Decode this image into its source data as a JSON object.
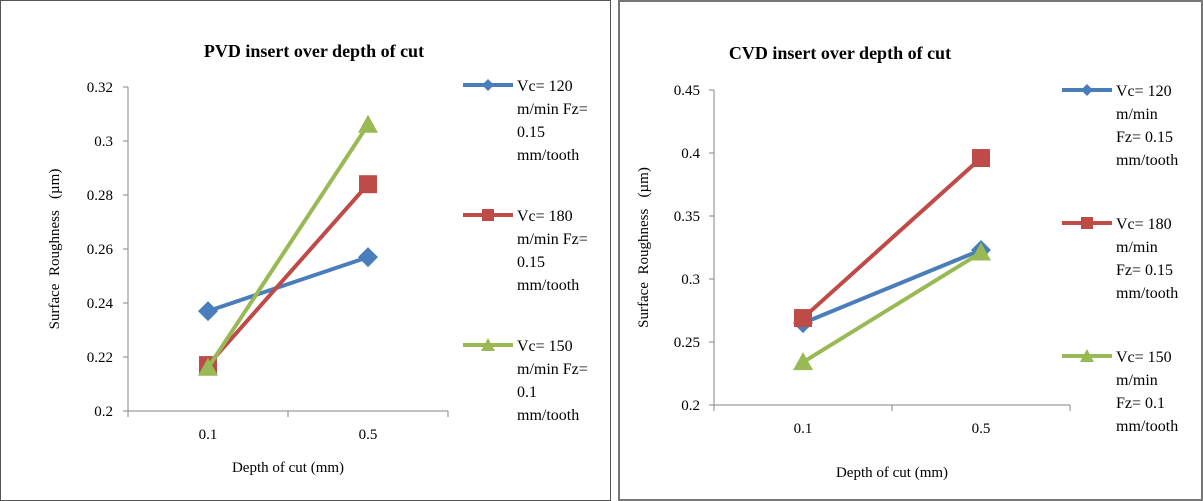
{
  "chart_data": [
    {
      "type": "line",
      "title": "PVD insert over depth of cut",
      "xlabel": "Depth of cut (mm)",
      "ylabel": "Surface  Roughness   (µm)",
      "categories": [
        "0.1",
        "0.5"
      ],
      "ylim": [
        0.2,
        0.32
      ],
      "yticks": [
        "0.2",
        "0.22",
        "0.24",
        "0.26",
        "0.28",
        "0.3",
        "0.32"
      ],
      "grid": false,
      "legend_position": "right",
      "series": [
        {
          "name": "Vc= 120 m/min Fz= 0.15 mm/tooth",
          "legend_lines": [
            "Vc= 120",
            "m/min Fz=",
            "0.15",
            "mm/tooth"
          ],
          "values": [
            0.237,
            0.257
          ],
          "color": "#4a7ebb",
          "marker": "diamond"
        },
        {
          "name": "Vc= 180 m/min Fz= 0.15 mm/tooth",
          "legend_lines": [
            "Vc= 180",
            "m/min Fz=",
            "0.15",
            "mm/tooth"
          ],
          "values": [
            0.217,
            0.284
          ],
          "color": "#be4b48",
          "marker": "square"
        },
        {
          "name": "Vc= 150 m/min Fz= 0.1 mm/tooth",
          "legend_lines": [
            "Vc= 150",
            "m/min Fz=",
            "0.1",
            "mm/tooth"
          ],
          "values": [
            0.216,
            0.306
          ],
          "color": "#98b954",
          "marker": "triangle"
        }
      ]
    },
    {
      "type": "line",
      "title": "CVD insert over depth of cut",
      "xlabel": "Depth of cut (mm)",
      "ylabel": "Surface  Roughness   (µm)",
      "categories": [
        "0.1",
        "0.5"
      ],
      "ylim": [
        0.2,
        0.45
      ],
      "yticks": [
        "0.2",
        "0.25",
        "0.3",
        "0.35",
        "0.4",
        "0.45"
      ],
      "grid": false,
      "legend_position": "right",
      "series": [
        {
          "name": "Vc= 120 m/min Fz= 0.15 mm/tooth",
          "legend_lines": [
            "Vc= 120",
            "m/min",
            "Fz= 0.15",
            "mm/tooth"
          ],
          "values": [
            0.265,
            0.323
          ],
          "color": "#4a7ebb",
          "marker": "diamond"
        },
        {
          "name": "Vc= 180 m/min Fz= 0.15 mm/tooth",
          "legend_lines": [
            "Vc= 180",
            "m/min",
            "Fz= 0.15",
            "mm/tooth"
          ],
          "values": [
            0.269,
            0.396
          ],
          "color": "#be4b48",
          "marker": "square"
        },
        {
          "name": "Vc= 150 m/min Fz= 0.1 mm/tooth",
          "legend_lines": [
            "Vc= 150",
            "m/min",
            "Fz= 0.1",
            "mm/tooth"
          ],
          "values": [
            0.234,
            0.321
          ],
          "color": "#98b954",
          "marker": "triangle"
        }
      ]
    }
  ]
}
